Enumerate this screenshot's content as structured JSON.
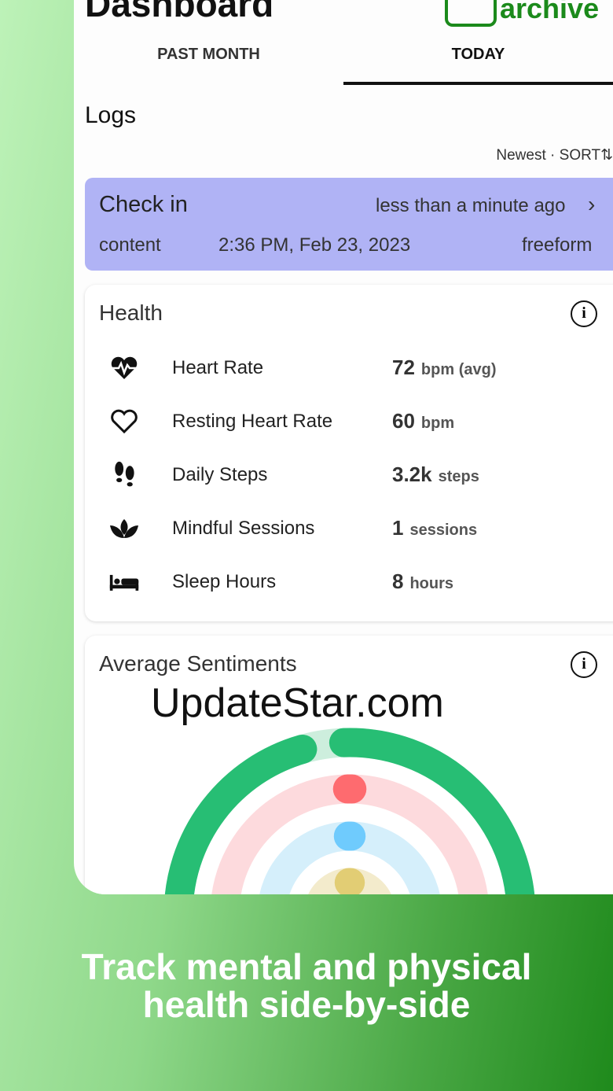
{
  "header": {
    "title": "Dashboard",
    "archive_label": "archive"
  },
  "tabs": [
    {
      "label": "PAST MONTH",
      "active": false
    },
    {
      "label": "TODAY",
      "active": true
    }
  ],
  "logs": {
    "title": "Logs",
    "sort_order": "Newest",
    "sort_label": "SORT⇅"
  },
  "checkin": {
    "title": "Check in",
    "relative_time": "less than a minute ago",
    "type": "content",
    "datetime": "2:36 PM, Feb 23, 2023",
    "mode": "freeform"
  },
  "health": {
    "title": "Health",
    "items": [
      {
        "icon": "heartbeat-icon",
        "label": "Heart Rate",
        "value": "72",
        "unit": "bpm (avg)"
      },
      {
        "icon": "heart-outline-icon",
        "label": "Resting Heart Rate",
        "value": "60",
        "unit": "bpm"
      },
      {
        "icon": "footprints-icon",
        "label": "Daily Steps",
        "value": "3.2k",
        "unit": "steps"
      },
      {
        "icon": "lotus-icon",
        "label": "Mindful Sessions",
        "value": "1",
        "unit": "sessions"
      },
      {
        "icon": "bed-icon",
        "label": "Sleep Hours",
        "value": "8",
        "unit": "hours"
      }
    ]
  },
  "sentiments": {
    "title": "Average Sentiments",
    "rings": [
      {
        "color": "#27be74",
        "track": "#cdeedd"
      },
      {
        "color": "#fe6b6f",
        "track": "#fddadd"
      },
      {
        "color": "#6fcbfd",
        "track": "#d5effb"
      },
      {
        "color": "#e2cd74",
        "track": "#f3ebcc"
      }
    ]
  },
  "watermark": "UpdateStar.com",
  "caption": {
    "line1": "Track mental and physical",
    "line2": "health side-by-side"
  }
}
